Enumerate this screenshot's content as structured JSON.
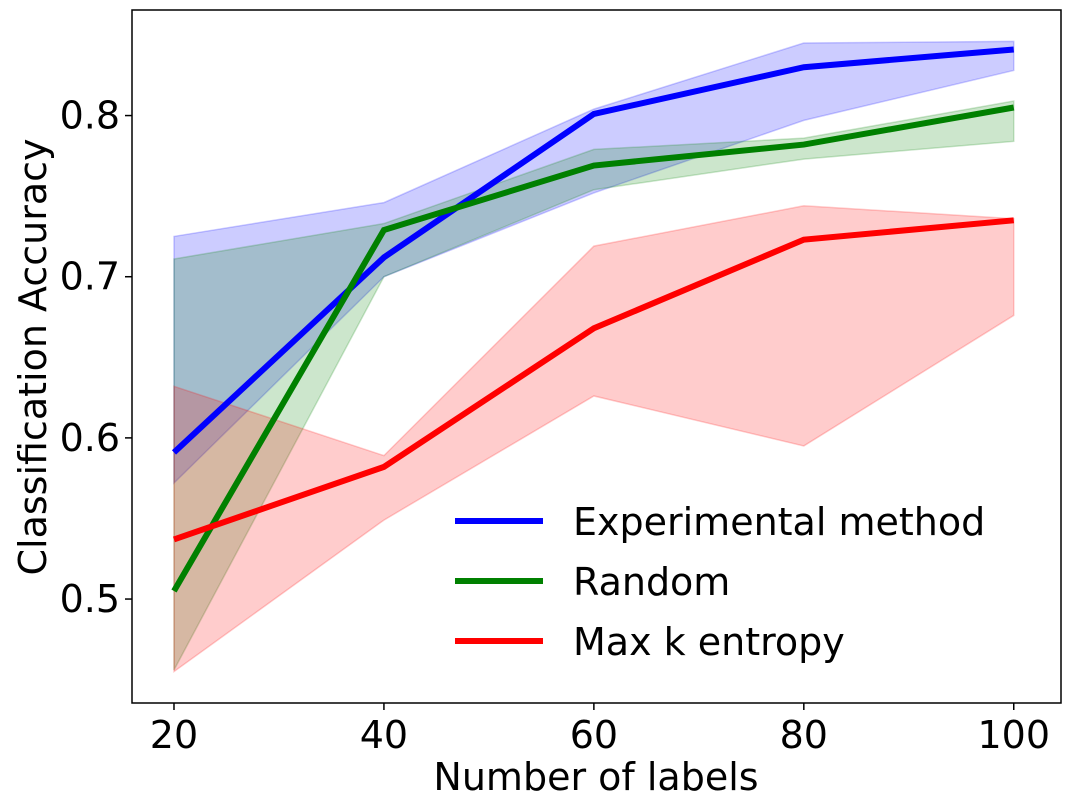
{
  "chart_data": {
    "type": "line",
    "title": "",
    "xlabel": "Number of labels",
    "ylabel": "Classification Accuracy",
    "x": [
      20,
      40,
      60,
      80,
      100
    ],
    "xlim": [
      16,
      104.5
    ],
    "ylim": [
      0.4355,
      0.8655
    ],
    "xticks": [
      20,
      40,
      60,
      80,
      100
    ],
    "xtick_labels": [
      "20",
      "40",
      "60",
      "80",
      "100"
    ],
    "yticks": [
      0.5,
      0.6,
      0.7,
      0.8
    ],
    "ytick_labels": [
      "0.5",
      "0.6",
      "0.7",
      "0.8"
    ],
    "grid": false,
    "legend_position": "lower-right",
    "series": [
      {
        "name": "Experimental method",
        "color": "#0000ff",
        "values": [
          0.591,
          0.712,
          0.801,
          0.83,
          0.841
        ],
        "lower": [
          0.572,
          0.7,
          0.752,
          0.797,
          0.828
        ],
        "upper": [
          0.725,
          0.746,
          0.804,
          0.845,
          0.846
        ]
      },
      {
        "name": "Random",
        "color": "#008000",
        "values": [
          0.505,
          0.729,
          0.769,
          0.782,
          0.805
        ],
        "lower": [
          0.456,
          0.7,
          0.754,
          0.773,
          0.784
        ],
        "upper": [
          0.711,
          0.733,
          0.779,
          0.786,
          0.809
        ]
      },
      {
        "name": "Max k entropy",
        "color": "#ff0000",
        "values": [
          0.537,
          0.582,
          0.668,
          0.723,
          0.735
        ],
        "lower": [
          0.455,
          0.549,
          0.626,
          0.595,
          0.676
        ],
        "upper": [
          0.632,
          0.589,
          0.719,
          0.744,
          0.736
        ]
      }
    ]
  }
}
